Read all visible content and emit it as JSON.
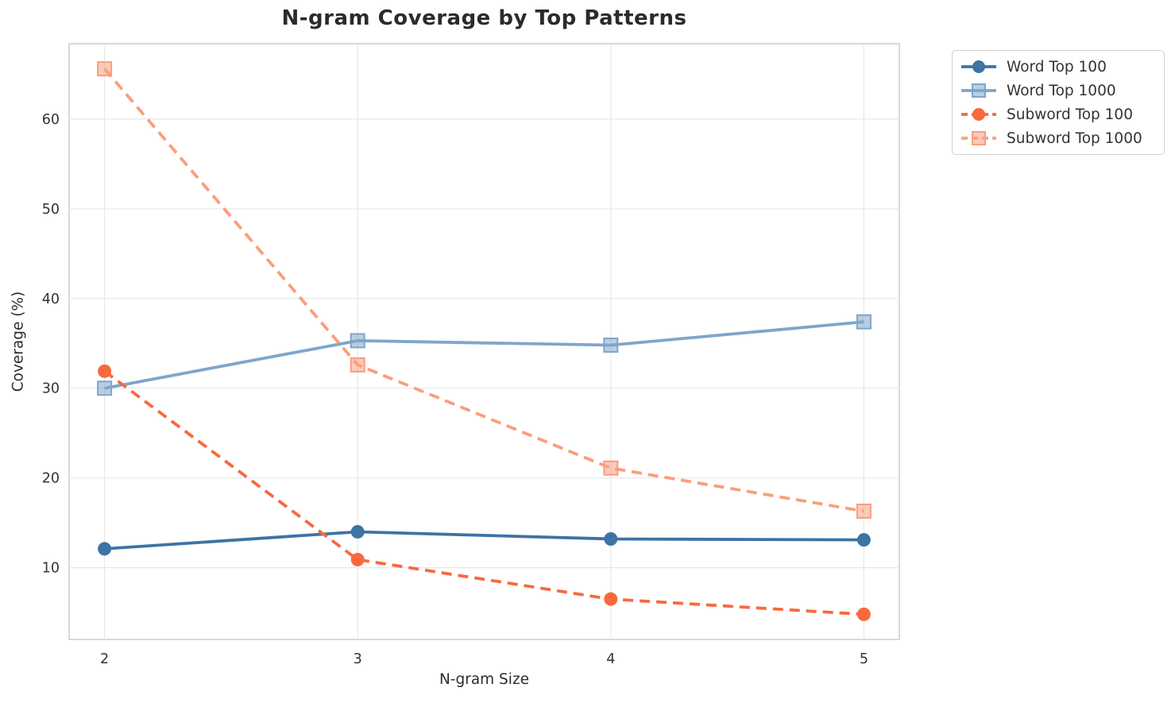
{
  "figure": {
    "title": "N-gram Coverage by Top Patterns",
    "xlabel": "N-gram Size",
    "ylabel": "Coverage (%)"
  },
  "chart_data": {
    "type": "line",
    "title": "N-gram Coverage by Top Patterns",
    "xlabel": "N-gram Size",
    "ylabel": "Coverage (%)",
    "x": [
      2,
      3,
      4,
      5
    ],
    "x_tick_labels": [
      "2",
      "3",
      "4",
      "5"
    ],
    "y_ticks": [
      10,
      20,
      30,
      40,
      50,
      60
    ],
    "xlim": [
      1.86,
      5.14
    ],
    "ylim": [
      2.0,
      68.4
    ],
    "grid": true,
    "legend_position": "outside upper right",
    "series": [
      {
        "name": "Word Top 100",
        "values": [
          12.1,
          14.0,
          13.2,
          13.1
        ],
        "color": "#3d73a5",
        "line_style": "solid",
        "marker": "circle"
      },
      {
        "name": "Word Top 1000",
        "values": [
          30.0,
          35.3,
          34.8,
          37.4
        ],
        "color": "#7ea6cb",
        "line_style": "solid",
        "marker": "square"
      },
      {
        "name": "Subword Top 100",
        "values": [
          31.9,
          10.9,
          6.5,
          4.8
        ],
        "color": "#f8693e",
        "line_style": "dashed",
        "marker": "circle"
      },
      {
        "name": "Subword Top 1000",
        "values": [
          65.6,
          32.6,
          21.1,
          16.3
        ],
        "color": "#f99e7d",
        "line_style": "dashed",
        "marker": "square"
      }
    ],
    "style": {
      "background": "#ffffff",
      "grid_color": "#e8e8e8",
      "spine_color": "#cccccc",
      "tick_label_color": "#333333",
      "title_color": "#2b2b2b",
      "axis_label_color": "#2d2d2d"
    }
  }
}
